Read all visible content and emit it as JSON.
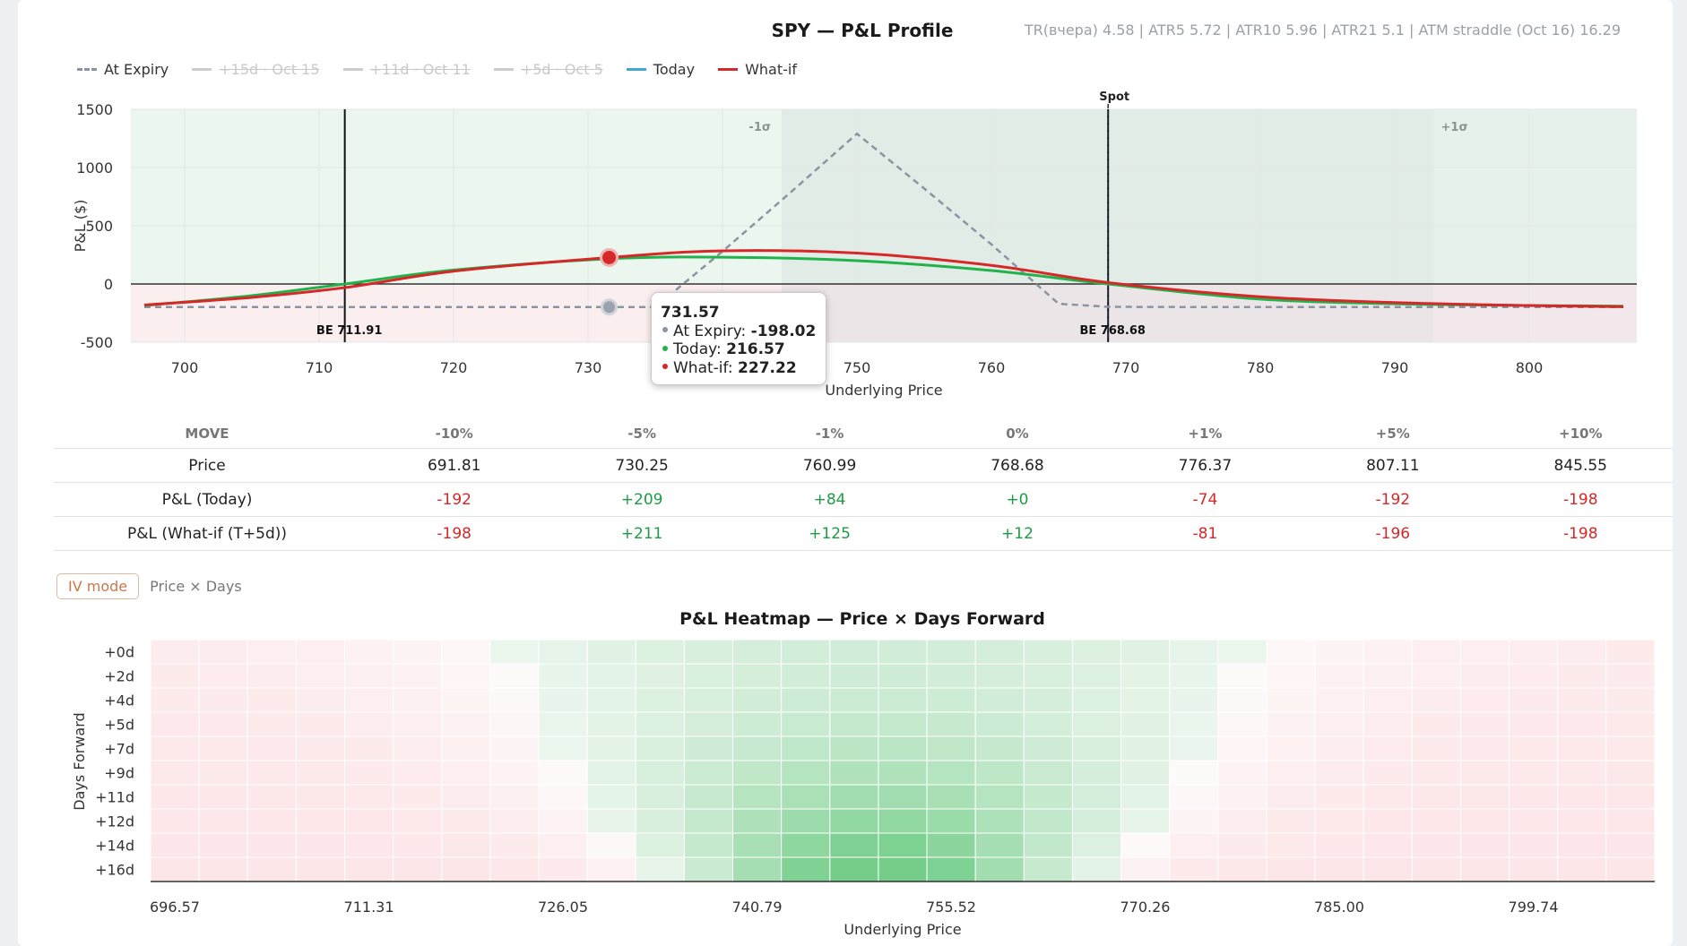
{
  "title": "SPY — P&L Profile",
  "stats": "TR(вчера) 4.58 | ATR5 5.72 | ATR10 5.96 | ATR21 5.1 | ATM straddle (Oct 16) 16.29",
  "legend": [
    {
      "label": "At Expiry",
      "color": "#8a94a2",
      "style": "dashed",
      "active": true
    },
    {
      "label": "+15d · Oct 15",
      "color": "#cccccc",
      "style": "solid",
      "active": false
    },
    {
      "label": "+11d · Oct 11",
      "color": "#cccccc",
      "style": "solid",
      "active": false
    },
    {
      "label": "+5d · Oct 5",
      "color": "#cccccc",
      "style": "solid",
      "active": false
    },
    {
      "label": "Today",
      "color": "#3fa7d6",
      "style": "solid",
      "active": true
    },
    {
      "label": "What-if",
      "color": "#d62828",
      "style": "solid",
      "active": true
    }
  ],
  "colors": {
    "today": "#22b24c",
    "whatif": "#d62828",
    "expiry": "#8a94a2"
  },
  "chart_data": [
    {
      "type": "line",
      "xlabel": "Underlying Price",
      "ylabel": "P&L ($)",
      "xlim": [
        696,
        808
      ],
      "ylim": [
        -500,
        1500
      ],
      "xticks": [
        700,
        710,
        720,
        730,
        740,
        750,
        760,
        770,
        780,
        790,
        800
      ],
      "yticks": [
        1500,
        1000,
        500,
        0,
        -500
      ],
      "grid": true,
      "legend_position": "top-left",
      "annotations": {
        "spot_label": "Spot",
        "spot": 768.68,
        "be_low_label": "BE 711.91",
        "be_low": 711.91,
        "be_high_label": "BE 768.68",
        "be_high": 768.68,
        "minus_sigma_label": "-1σ",
        "minus_sigma": 744.4,
        "plus_sigma_label": "+1σ",
        "plus_sigma": 792.9
      },
      "series": [
        {
          "name": "At Expiry",
          "style": "dashed",
          "x": [
            697,
            720,
            725,
            730,
            735,
            740,
            745,
            750,
            755,
            760,
            765,
            768.68,
            775,
            790,
            807
          ],
          "y": [
            -198,
            -198,
            -198,
            -198,
            -198,
            280,
            780,
            1290,
            820,
            340,
            -170,
            -196,
            -198,
            -198,
            -198
          ]
        },
        {
          "name": "Today",
          "x": [
            697,
            705,
            711.91,
            720,
            731.57,
            740,
            750,
            760,
            768.68,
            780,
            790,
            800,
            807
          ],
          "y": [
            -185,
            -100,
            0,
            120,
            216.57,
            230,
            200,
            115,
            0,
            -130,
            -170,
            -185,
            -190
          ]
        },
        {
          "name": "What-if",
          "x": [
            697,
            705,
            712,
            720,
            731.57,
            740,
            750,
            760,
            768.68,
            780,
            790,
            800,
            807
          ],
          "y": [
            -180,
            -115,
            -30,
            110,
            227.22,
            285,
            265,
            160,
            12,
            -110,
            -160,
            -185,
            -195
          ]
        }
      ],
      "tooltip": {
        "price": "731.57",
        "rows": [
          {
            "label": "At Expiry",
            "value": "-198.02",
            "color": "#8a94a2"
          },
          {
            "label": "Today",
            "value": "216.57",
            "color": "#22b24c"
          },
          {
            "label": "What-if",
            "value": "227.22",
            "color": "#d62828"
          }
        ]
      }
    },
    {
      "type": "table",
      "headers": [
        "MOVE",
        "-10%",
        "-5%",
        "-1%",
        "0%",
        "+1%",
        "+5%",
        "+10%"
      ],
      "rows": [
        {
          "label": "Price",
          "values": [
            "691.81",
            "730.25",
            "760.99",
            "768.68",
            "776.37",
            "807.11",
            "845.55"
          ]
        },
        {
          "label": "P&L (Today)",
          "values": [
            "-192",
            "+209",
            "+84",
            "+0",
            "-74",
            "-192",
            "-198"
          ]
        },
        {
          "label": "P&L (What-if (T+5d))",
          "values": [
            "-198",
            "+211",
            "+125",
            "+12",
            "-81",
            "-196",
            "-198"
          ]
        }
      ]
    },
    {
      "type": "heatmap",
      "title": "P&L Heatmap — Price × Days Forward",
      "xlabel": "Underlying Price",
      "ylabel": "Days Forward",
      "x_tick_labels": [
        "696.57",
        "711.31",
        "726.05",
        "740.79",
        "755.52",
        "770.26",
        "785.00",
        "799.74"
      ],
      "y_labels": [
        "+0d",
        "+2d",
        "+4d",
        "+5d",
        "+7d",
        "+9d",
        "+11d",
        "+12d",
        "+14d",
        "+16d"
      ],
      "x_range": [
        696.57,
        810.8
      ],
      "columns": 31
    }
  ],
  "mode": {
    "iv_label": "IV mode",
    "pd_label": "Price × Days"
  }
}
